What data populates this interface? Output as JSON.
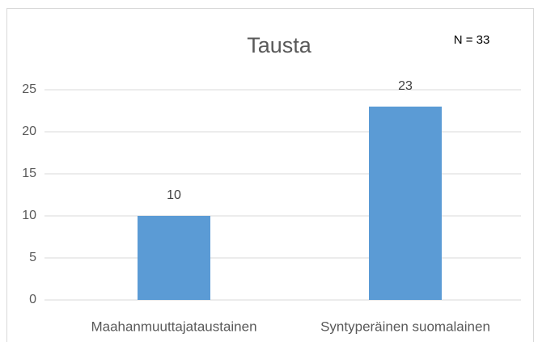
{
  "chart_data": {
    "type": "bar",
    "title": "Tausta",
    "annotation": "N = 33",
    "categories": [
      "Maahanmuuttajataustainen",
      "Syntyperäinen suomalainen"
    ],
    "values": [
      10,
      23
    ],
    "color": "#5b9bd5",
    "ylim": [
      0,
      25
    ],
    "yticks": [
      0,
      5,
      10,
      15,
      20,
      25
    ],
    "grid": true,
    "data_labels": true
  }
}
